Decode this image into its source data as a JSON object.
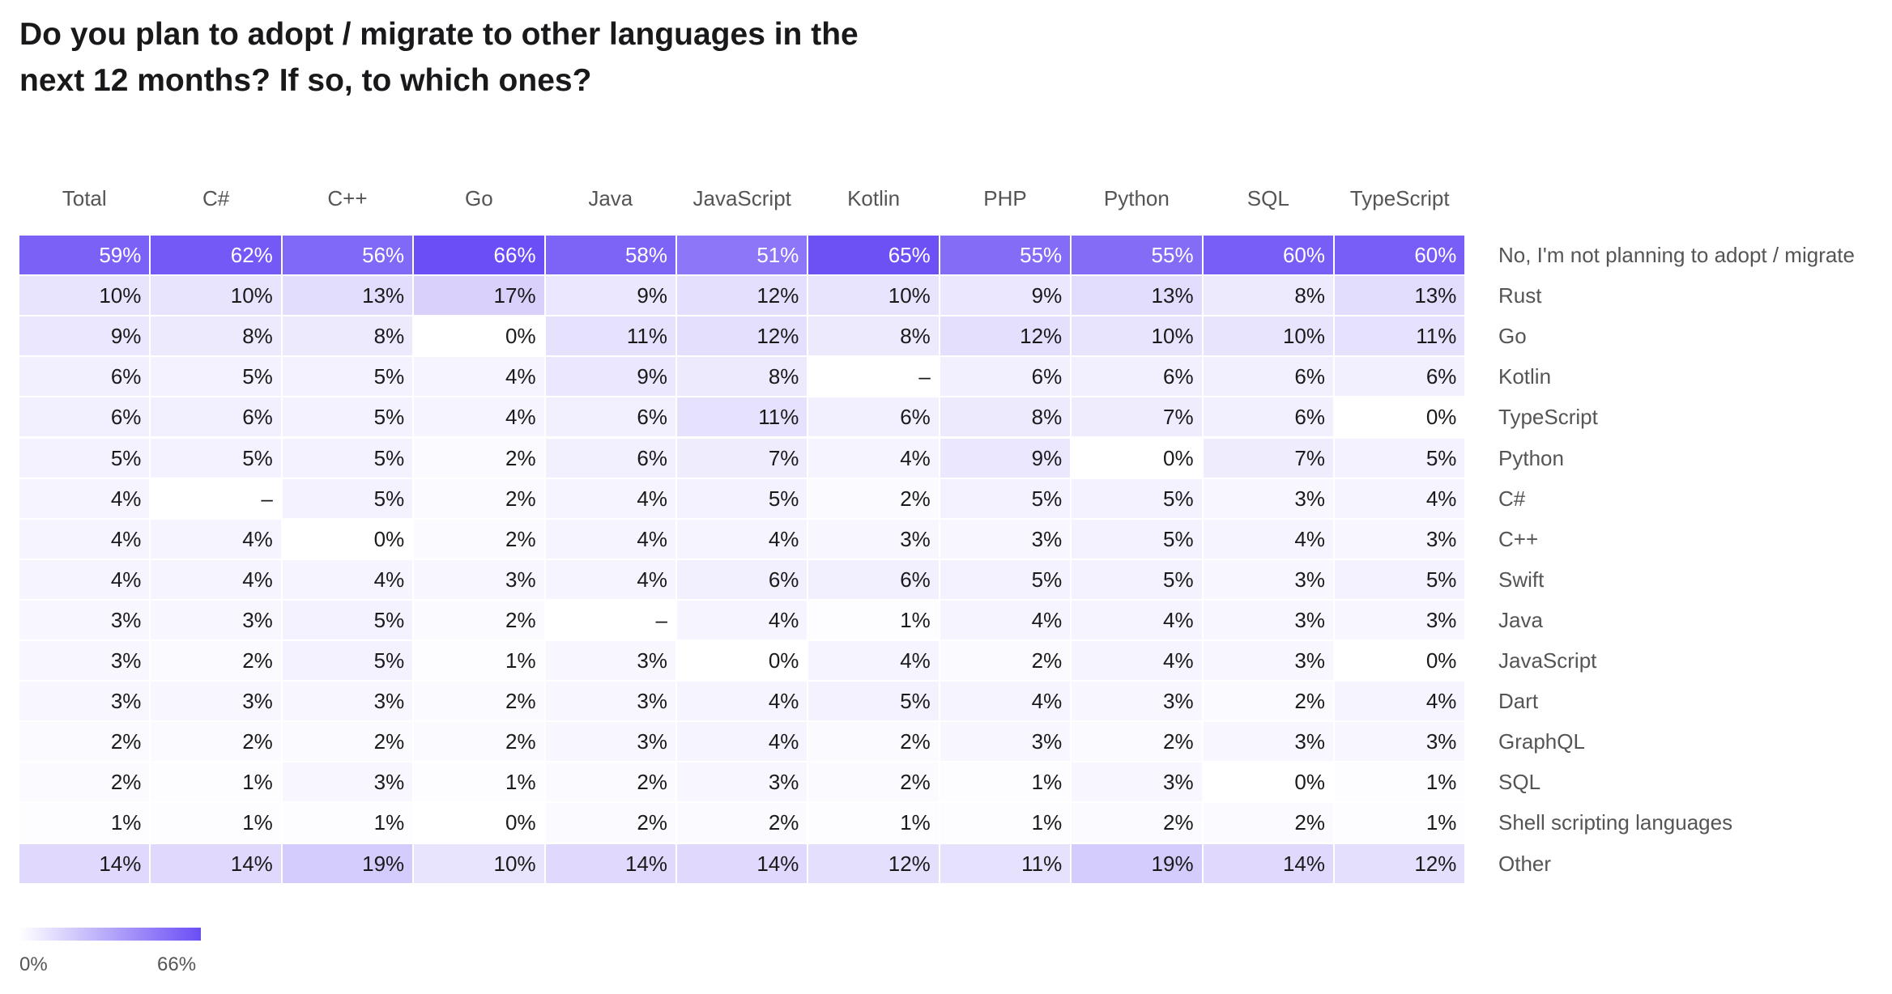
{
  "chart_data": {
    "type": "heatmap",
    "title": "Do you plan to adopt / migrate to other languages in the next 12 months? If so, to which ones?",
    "columns": [
      "Total",
      "C#",
      "C++",
      "Go",
      "Java",
      "JavaScript",
      "Kotlin",
      "PHP",
      "Python",
      "SQL",
      "TypeScript"
    ],
    "rows": [
      {
        "label": "No, I'm not planning to adopt / migrate",
        "values": [
          59,
          62,
          56,
          66,
          58,
          51,
          65,
          55,
          55,
          60,
          60
        ]
      },
      {
        "label": "Rust",
        "values": [
          10,
          10,
          13,
          17,
          9,
          12,
          10,
          9,
          13,
          8,
          13
        ]
      },
      {
        "label": "Go",
        "values": [
          9,
          8,
          8,
          0,
          11,
          12,
          8,
          12,
          10,
          10,
          11
        ]
      },
      {
        "label": "Kotlin",
        "values": [
          6,
          5,
          5,
          4,
          9,
          8,
          null,
          6,
          6,
          6,
          6
        ]
      },
      {
        "label": "TypeScript",
        "values": [
          6,
          6,
          5,
          4,
          6,
          11,
          6,
          8,
          7,
          6,
          0
        ]
      },
      {
        "label": "Python",
        "values": [
          5,
          5,
          5,
          2,
          6,
          7,
          4,
          9,
          0,
          7,
          5
        ]
      },
      {
        "label": "C#",
        "values": [
          4,
          null,
          5,
          2,
          4,
          5,
          2,
          5,
          5,
          3,
          4
        ]
      },
      {
        "label": "C++",
        "values": [
          4,
          4,
          0,
          2,
          4,
          4,
          3,
          3,
          5,
          4,
          3
        ]
      },
      {
        "label": "Swift",
        "values": [
          4,
          4,
          4,
          3,
          4,
          6,
          6,
          5,
          5,
          3,
          5
        ]
      },
      {
        "label": "Java",
        "values": [
          3,
          3,
          5,
          2,
          null,
          4,
          1,
          4,
          4,
          3,
          3
        ]
      },
      {
        "label": "JavaScript",
        "values": [
          3,
          2,
          5,
          1,
          3,
          0,
          4,
          2,
          4,
          3,
          0
        ]
      },
      {
        "label": "Dart",
        "values": [
          3,
          3,
          3,
          2,
          3,
          4,
          5,
          4,
          3,
          2,
          4
        ]
      },
      {
        "label": "GraphQL",
        "values": [
          2,
          2,
          2,
          2,
          3,
          4,
          2,
          3,
          2,
          3,
          3
        ]
      },
      {
        "label": "SQL",
        "values": [
          2,
          1,
          3,
          1,
          2,
          3,
          2,
          1,
          3,
          0,
          1
        ]
      },
      {
        "label": "Shell scripting languages",
        "values": [
          1,
          1,
          1,
          0,
          2,
          2,
          1,
          1,
          2,
          2,
          1
        ]
      },
      {
        "label": "Other",
        "values": [
          14,
          14,
          19,
          10,
          14,
          14,
          12,
          11,
          19,
          14,
          12
        ]
      }
    ],
    "value_suffix": "%",
    "missing_text": "–",
    "legend": {
      "min": 0,
      "max": 66,
      "min_label": "0%",
      "max_label": "66%",
      "placement": "bottom-left"
    },
    "colors": {
      "low": "#ffffff",
      "high": "#6b4ef5",
      "text_dark": "#1a1a1a",
      "text_light": "#ffffff"
    }
  }
}
